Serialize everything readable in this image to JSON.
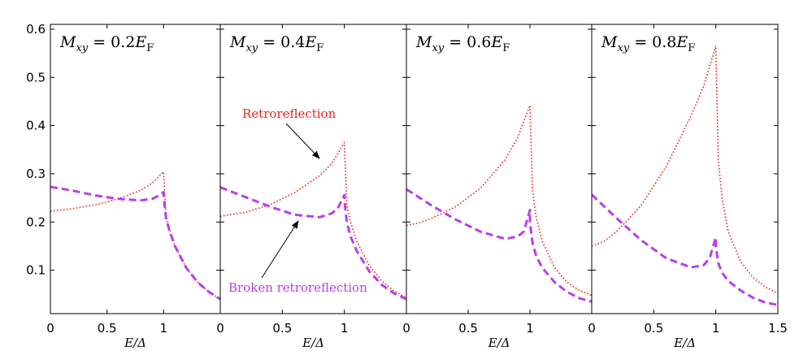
{
  "chart_data": {
    "type": "line",
    "ylim": [
      0.01,
      0.61
    ],
    "yticks": [
      0.1,
      0.2,
      0.3,
      0.4,
      0.5,
      0.6
    ],
    "ytick_labels": [
      "0.1",
      "0.2",
      "0.3",
      "0.4",
      "0.5",
      "0.6"
    ],
    "xlim": [
      0,
      1.5
    ],
    "xticks": [
      0,
      0.5,
      1,
      1.5
    ],
    "xtick_labels": [
      "0",
      "0.5",
      "1",
      "1.5"
    ],
    "xlabel": "E/Δ",
    "colors": {
      "retro": "#e8281e",
      "broken": "#b93ee8",
      "axis": "#000000"
    },
    "annotations": {
      "retro_label": "Retroreflection",
      "broken_label": "Broken retroreflection"
    },
    "panels": [
      {
        "title": "M_xy = 0.2E_F",
        "title_main": "M",
        "title_sub": "xy",
        "title_eq": " = 0.2",
        "title_e": "E",
        "title_esub": "F",
        "series": [
          {
            "name": "Retroreflection",
            "style": "dotted",
            "x": [
              0,
              0.2,
              0.4,
              0.6,
              0.8,
              0.9,
              1.0,
              1.0,
              1.02,
              1.05,
              1.1,
              1.2,
              1.3,
              1.4,
              1.5
            ],
            "y": [
              0.222,
              0.228,
              0.236,
              0.248,
              0.266,
              0.281,
              0.304,
              0.3,
              0.215,
              0.185,
              0.15,
              0.105,
              0.075,
              0.055,
              0.04
            ]
          },
          {
            "name": "Broken retroreflection",
            "style": "dashed",
            "x": [
              0,
              0.2,
              0.4,
              0.6,
              0.8,
              0.9,
              0.95,
              1.0,
              1.0,
              1.02,
              1.05,
              1.1,
              1.2,
              1.3,
              1.4,
              1.5
            ],
            "y": [
              0.273,
              0.265,
              0.255,
              0.248,
              0.245,
              0.248,
              0.254,
              0.262,
              0.255,
              0.21,
              0.183,
              0.15,
              0.105,
              0.075,
              0.055,
              0.04
            ]
          }
        ]
      },
      {
        "title": "M_xy = 0.4E_F",
        "title_main": "M",
        "title_sub": "xy",
        "title_eq": " = 0.4",
        "title_e": "E",
        "title_esub": "F",
        "series": [
          {
            "name": "Retroreflection",
            "style": "dotted",
            "x": [
              0,
              0.2,
              0.4,
              0.6,
              0.8,
              0.9,
              1.0,
              1.0,
              1.02,
              1.05,
              1.1,
              1.2,
              1.3,
              1.4,
              1.5
            ],
            "y": [
              0.212,
              0.22,
              0.236,
              0.261,
              0.296,
              0.322,
              0.365,
              0.362,
              0.235,
              0.2,
              0.16,
              0.11,
              0.078,
              0.057,
              0.043
            ]
          },
          {
            "name": "Broken retroreflection",
            "style": "dashed",
            "x": [
              0,
              0.2,
              0.4,
              0.6,
              0.8,
              0.9,
              0.95,
              1.0,
              1.0,
              1.02,
              1.05,
              1.1,
              1.2,
              1.3,
              1.4,
              1.5
            ],
            "y": [
              0.272,
              0.252,
              0.232,
              0.215,
              0.21,
              0.218,
              0.23,
              0.256,
              0.245,
              0.2,
              0.17,
              0.14,
              0.098,
              0.07,
              0.052,
              0.04
            ]
          }
        ]
      },
      {
        "title": "M_xy = 0.6E_F",
        "title_main": "M",
        "title_sub": "xy",
        "title_eq": " = 0.6",
        "title_e": "E",
        "title_esub": "F",
        "series": [
          {
            "name": "Retroreflection",
            "style": "dotted",
            "x": [
              0,
              0.1,
              0.2,
              0.4,
              0.6,
              0.8,
              0.9,
              1.0,
              1.0,
              1.02,
              1.05,
              1.1,
              1.2,
              1.3,
              1.4,
              1.5
            ],
            "y": [
              0.193,
              0.198,
              0.207,
              0.232,
              0.27,
              0.33,
              0.375,
              0.442,
              0.438,
              0.27,
              0.21,
              0.16,
              0.105,
              0.075,
              0.058,
              0.048
            ]
          },
          {
            "name": "Broken retroreflection",
            "style": "dashed",
            "x": [
              0,
              0.2,
              0.4,
              0.6,
              0.8,
              0.9,
              0.95,
              1.0,
              1.0,
              1.02,
              1.05,
              1.1,
              1.2,
              1.3,
              1.4,
              1.5
            ],
            "y": [
              0.268,
              0.235,
              0.205,
              0.18,
              0.165,
              0.17,
              0.18,
              0.225,
              0.2,
              0.158,
              0.13,
              0.105,
              0.075,
              0.055,
              0.042,
              0.035
            ]
          }
        ]
      },
      {
        "title": "M_xy = 0.8E_F",
        "title_main": "M",
        "title_sub": "xy",
        "title_eq": " = 0.8",
        "title_e": "E",
        "title_esub": "F",
        "series": [
          {
            "name": "Retroreflection",
            "style": "dotted",
            "x": [
              0,
              0.1,
              0.2,
              0.4,
              0.6,
              0.8,
              0.9,
              1.0,
              1.0,
              1.02,
              1.05,
              1.1,
              1.2,
              1.3,
              1.4,
              1.5
            ],
            "y": [
              0.15,
              0.16,
              0.18,
              0.235,
              0.315,
              0.42,
              0.48,
              0.565,
              0.555,
              0.33,
              0.25,
              0.18,
              0.118,
              0.085,
              0.065,
              0.052
            ]
          },
          {
            "name": "Broken retroreflection",
            "style": "dashed",
            "x": [
              0,
              0.2,
              0.4,
              0.6,
              0.8,
              0.9,
              0.95,
              1.0,
              1.0,
              1.02,
              1.05,
              1.1,
              1.2,
              1.3,
              1.4,
              1.5
            ],
            "y": [
              0.257,
              0.208,
              0.162,
              0.125,
              0.106,
              0.11,
              0.125,
              0.168,
              0.15,
              0.115,
              0.095,
              0.078,
              0.058,
              0.043,
              0.033,
              0.028
            ]
          }
        ]
      }
    ]
  }
}
